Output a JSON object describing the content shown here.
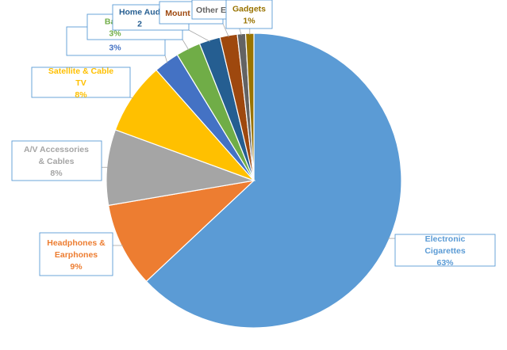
{
  "chart_data": {
    "type": "pie",
    "title": "",
    "start_angle_deg": 0,
    "direction": "clockwise",
    "slices": [
      {
        "label": "Electronic Cigarettes",
        "pct_label": "63%",
        "value": 63.0,
        "color": "#5b9bd5"
      },
      {
        "label": "Headphones & Earphones",
        "pct_label": "9%",
        "value": 9.3,
        "color": "#ed7d31"
      },
      {
        "label": "A/V Accessories & Cables",
        "pct_label": "8%",
        "value": 8.3,
        "color": "#a5a5a5"
      },
      {
        "label": "Satellite & Cable TV",
        "pct_label": "8%",
        "value": 7.9,
        "color": "#ffc000"
      },
      {
        "label": "Elect",
        "pct_label": "3%",
        "value": 2.8,
        "color": "#4472c4"
      },
      {
        "label": "Batte",
        "pct_label": "3%",
        "value": 2.7,
        "color": "#70ad47"
      },
      {
        "label": "Home Aud",
        "pct_label": "2",
        "value": 2.3,
        "color": "#255e91"
      },
      {
        "label": "Mount",
        "pct_label": "",
        "value": 1.9,
        "color": "#9e480e"
      },
      {
        "label": "Other E",
        "pct_label": "",
        "value": 0.9,
        "color": "#636363"
      },
      {
        "label": "Gadgets",
        "pct_label": "1%",
        "value": 0.9,
        "color": "#997300"
      }
    ]
  }
}
